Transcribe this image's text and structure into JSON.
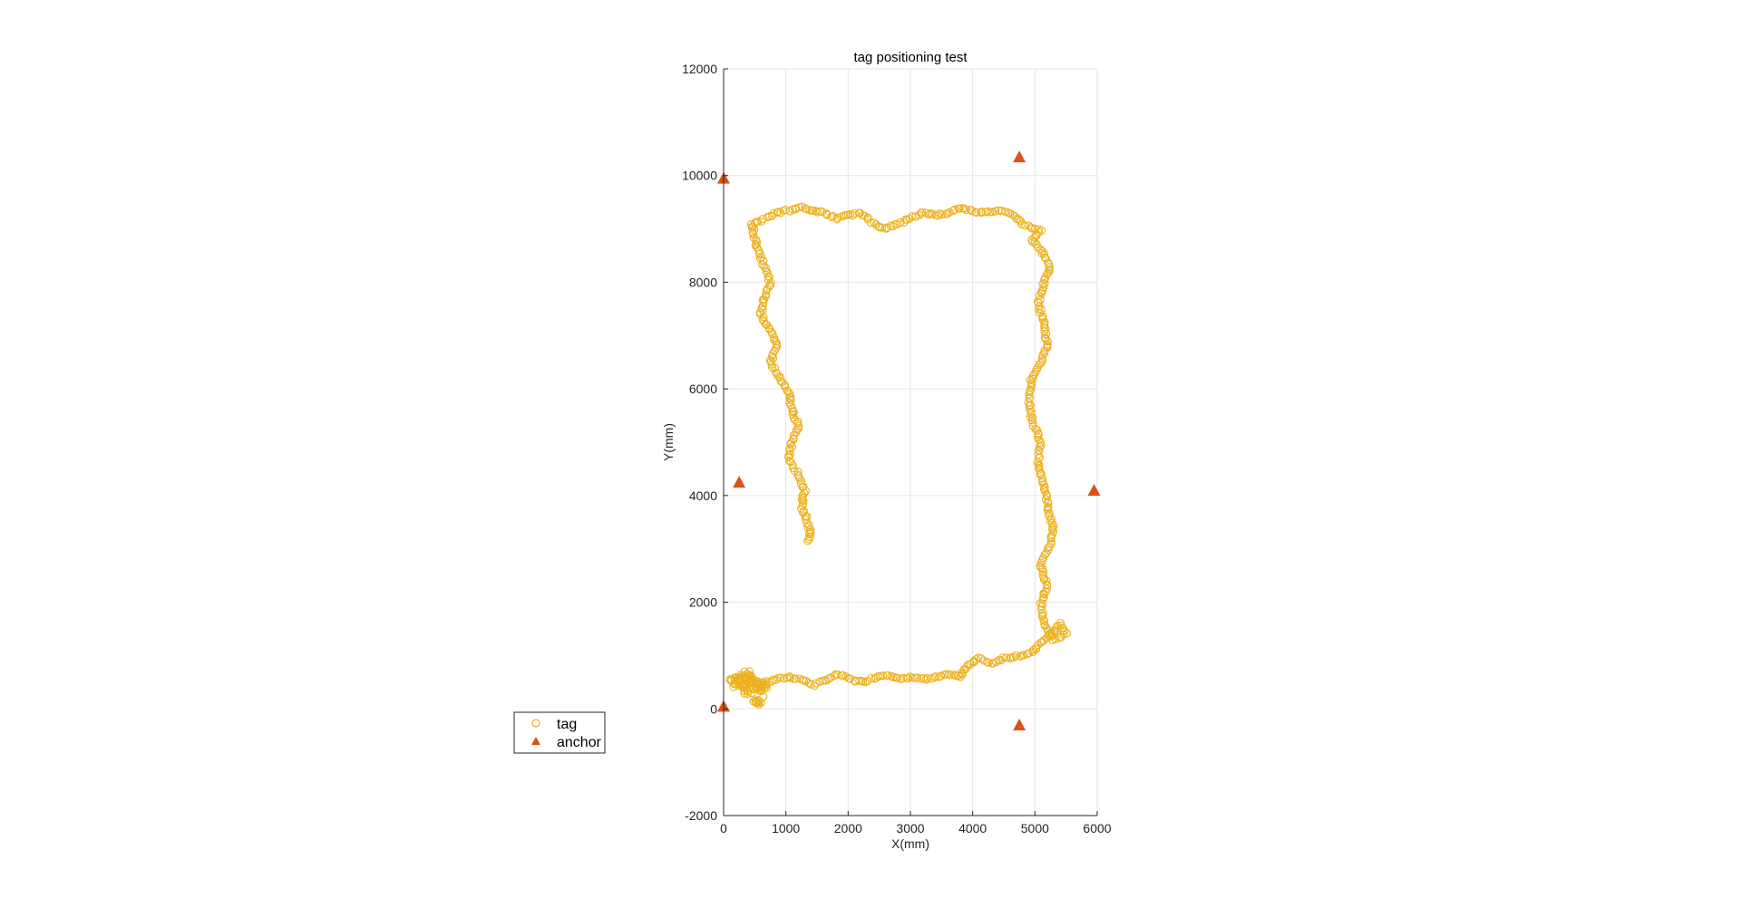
{
  "chart_data": {
    "type": "scatter",
    "title": "tag positioning test",
    "xlabel": "X(mm)",
    "ylabel": "Y(mm)",
    "xlim": [
      0,
      6000
    ],
    "ylim": [
      -2000,
      12000
    ],
    "xticks": [
      0,
      1000,
      2000,
      3000,
      4000,
      5000,
      6000
    ],
    "yticks": [
      -2000,
      0,
      2000,
      4000,
      6000,
      8000,
      10000,
      12000
    ],
    "xtick_labels": [
      "0",
      "1000",
      "2000",
      "3000",
      "4000",
      "5000",
      "6000"
    ],
    "ytick_labels": [
      "-2000",
      "0",
      "2000",
      "4000",
      "6000",
      "8000",
      "10000",
      "12000"
    ],
    "grid": true,
    "legend": {
      "position": "left",
      "entries": [
        "tag",
        "anchor"
      ]
    },
    "colors": {
      "tag": "#EDB120",
      "anchor": "#D95319",
      "grid": "#e6e6e6",
      "axis": "#262626"
    },
    "series": [
      {
        "name": "tag",
        "marker": "circle-open",
        "path": [
          [
            100,
            550
          ],
          [
            300,
            600
          ],
          [
            500,
            500
          ],
          [
            650,
            450
          ],
          [
            700,
            500
          ],
          [
            850,
            550
          ],
          [
            1050,
            600
          ],
          [
            1250,
            550
          ],
          [
            1450,
            450
          ],
          [
            1650,
            550
          ],
          [
            1850,
            650
          ],
          [
            2050,
            550
          ],
          [
            2250,
            500
          ],
          [
            2450,
            600
          ],
          [
            2650,
            650
          ],
          [
            2850,
            550
          ],
          [
            3050,
            600
          ],
          [
            3250,
            550
          ],
          [
            3450,
            600
          ],
          [
            3650,
            650
          ],
          [
            3800,
            600
          ],
          [
            3900,
            800
          ],
          [
            4100,
            950
          ],
          [
            4300,
            850
          ],
          [
            4500,
            950
          ],
          [
            4750,
            1000
          ],
          [
            4950,
            1050
          ],
          [
            5150,
            1300
          ],
          [
            5300,
            1450
          ],
          [
            5400,
            1600
          ],
          [
            5500,
            1400
          ],
          [
            5300,
            1300
          ],
          [
            5150,
            1600
          ],
          [
            5100,
            2000
          ],
          [
            5200,
            2300
          ],
          [
            5100,
            2700
          ],
          [
            5250,
            3100
          ],
          [
            5300,
            3400
          ],
          [
            5200,
            3800
          ],
          [
            5150,
            4200
          ],
          [
            5050,
            4600
          ],
          [
            5100,
            5000
          ],
          [
            4950,
            5400
          ],
          [
            4900,
            5800
          ],
          [
            4950,
            6200
          ],
          [
            5100,
            6500
          ],
          [
            5200,
            6800
          ],
          [
            5150,
            7200
          ],
          [
            5050,
            7600
          ],
          [
            5150,
            8000
          ],
          [
            5250,
            8300
          ],
          [
            5100,
            8600
          ],
          [
            4950,
            8800
          ],
          [
            5100,
            8950
          ],
          [
            4800,
            9100
          ],
          [
            4600,
            9300
          ],
          [
            4400,
            9350
          ],
          [
            4200,
            9300
          ],
          [
            3950,
            9350
          ],
          [
            3800,
            9400
          ],
          [
            3600,
            9300
          ],
          [
            3400,
            9250
          ],
          [
            3200,
            9300
          ],
          [
            3000,
            9200
          ],
          [
            2800,
            9100
          ],
          [
            2600,
            9000
          ],
          [
            2400,
            9100
          ],
          [
            2200,
            9300
          ],
          [
            2000,
            9250
          ],
          [
            1800,
            9200
          ],
          [
            1600,
            9300
          ],
          [
            1450,
            9350
          ],
          [
            1250,
            9400
          ],
          [
            1050,
            9350
          ],
          [
            850,
            9300
          ],
          [
            600,
            9150
          ],
          [
            450,
            9100
          ],
          [
            500,
            8850
          ],
          [
            550,
            8600
          ],
          [
            650,
            8300
          ],
          [
            750,
            8000
          ],
          [
            650,
            7700
          ],
          [
            600,
            7400
          ],
          [
            750,
            7100
          ],
          [
            850,
            6800
          ],
          [
            750,
            6500
          ],
          [
            900,
            6200
          ],
          [
            1050,
            5900
          ],
          [
            1100,
            5600
          ],
          [
            1200,
            5300
          ],
          [
            1100,
            5000
          ],
          [
            1050,
            4700
          ],
          [
            1200,
            4400
          ],
          [
            1300,
            4100
          ],
          [
            1250,
            3800
          ],
          [
            1350,
            3500
          ],
          [
            1400,
            3300
          ],
          [
            1350,
            3150
          ]
        ],
        "cluster_near_origin": [
          [
            200,
            500
          ],
          [
            350,
            650
          ],
          [
            450,
            550
          ],
          [
            550,
            400
          ],
          [
            400,
            350
          ],
          [
            550,
            150
          ],
          [
            600,
            450
          ],
          [
            300,
            500
          ]
        ]
      },
      {
        "name": "anchor",
        "marker": "triangle-filled",
        "points": [
          [
            0,
            9950
          ],
          [
            4750,
            10350
          ],
          [
            250,
            4250
          ],
          [
            5950,
            4100
          ],
          [
            0,
            50
          ],
          [
            4750,
            -300
          ]
        ]
      }
    ]
  }
}
